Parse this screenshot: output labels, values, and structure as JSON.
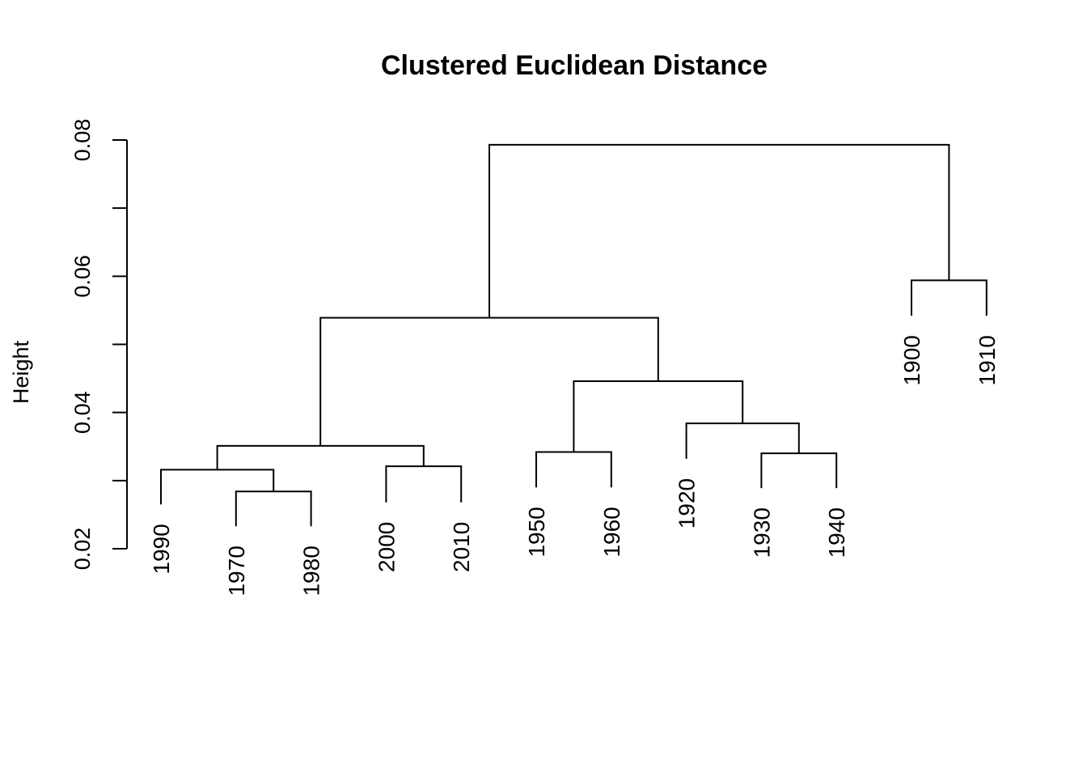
{
  "chart_data": {
    "type": "dendrogram",
    "title": "Clustered Euclidean Distance",
    "ylabel": "Height",
    "xlabel": "",
    "ylim": [
      0.02,
      0.08
    ],
    "yticks": [
      "0.02",
      "0.04",
      "0.06",
      "0.08"
    ],
    "ytick_values": [
      0.02,
      0.03,
      0.04,
      0.05,
      0.06,
      0.07,
      0.08
    ],
    "leaves": [
      "1990",
      "1970",
      "1980",
      "2000",
      "2010",
      "1950",
      "1960",
      "1920",
      "1930",
      "1940",
      "1900",
      "1910"
    ],
    "leaf_label_heights": [
      0.0265,
      0.0233,
      0.0233,
      0.0268,
      0.0268,
      0.029,
      0.029,
      0.0332,
      0.0289,
      0.0289,
      0.0542,
      0.0542
    ],
    "merges": [
      {
        "left": "1970",
        "right": "1980",
        "height": 0.0284
      },
      {
        "left": "1990",
        "right": "(1970,1980)",
        "height": 0.0316
      },
      {
        "left": "2000",
        "right": "2010",
        "height": 0.0321
      },
      {
        "left": "(1990,1970,1980)",
        "right": "(2000,2010)",
        "height": 0.0351
      },
      {
        "left": "1950",
        "right": "1960",
        "height": 0.0342
      },
      {
        "left": "1930",
        "right": "1940",
        "height": 0.034
      },
      {
        "left": "1920",
        "right": "(1930,1940)",
        "height": 0.0384
      },
      {
        "left": "(1950,1960)",
        "right": "(1920,1930,1940)",
        "height": 0.0446
      },
      {
        "left": "(1990..2010)",
        "right": "(1920..1960)",
        "height": 0.0539
      },
      {
        "left": "1900",
        "right": "1910",
        "height": 0.0594
      },
      {
        "left": "(1920..2010)",
        "right": "(1900,1910)",
        "height": 0.0793
      }
    ]
  }
}
